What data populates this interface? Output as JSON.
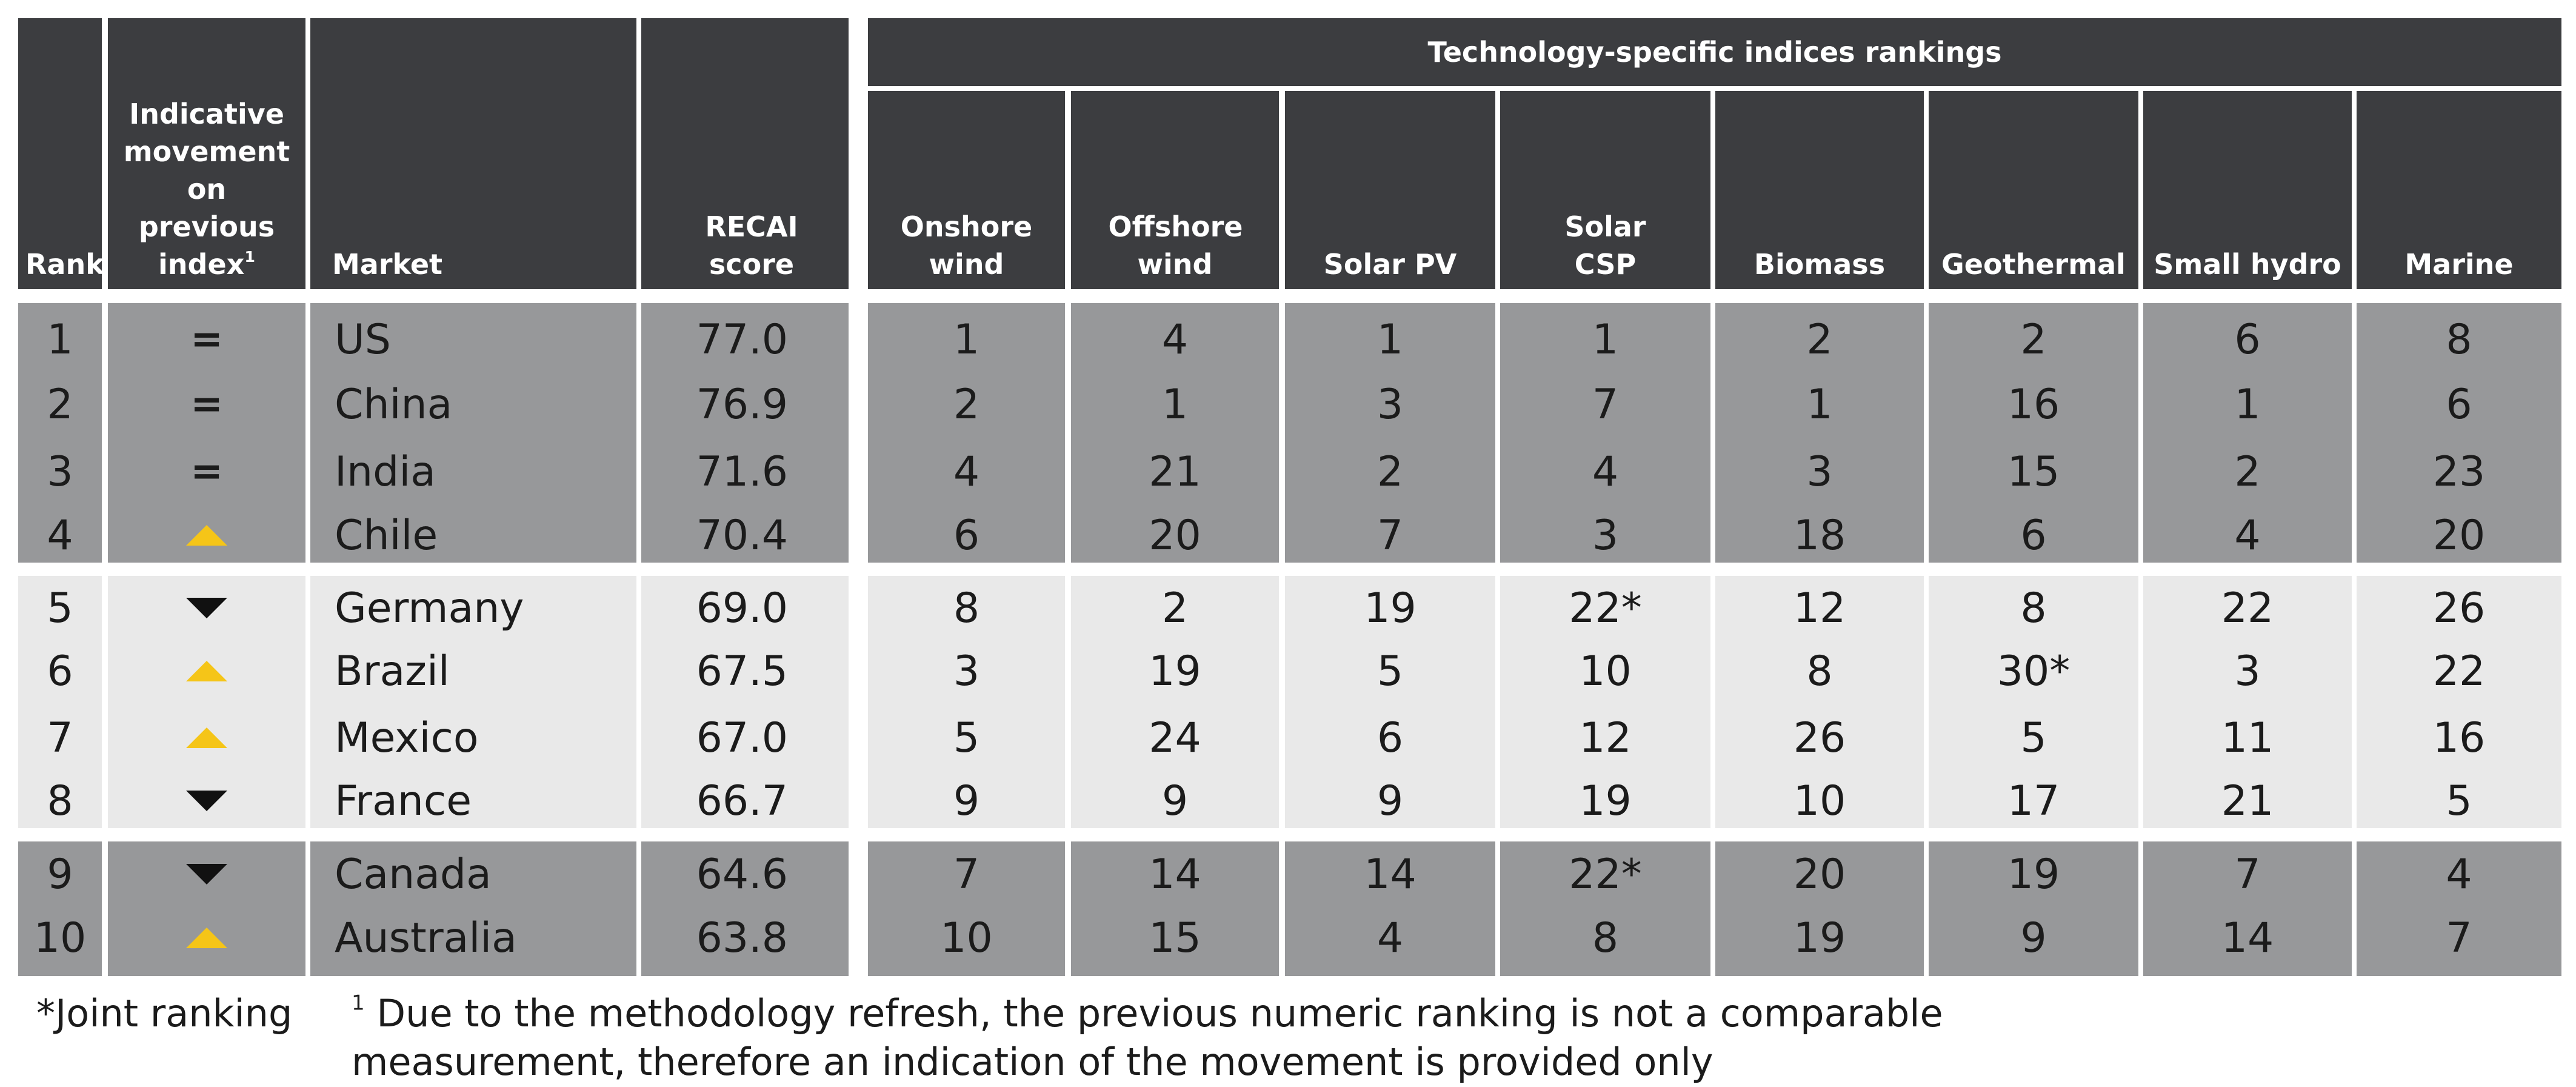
{
  "colors": {
    "header": "#3c3d40",
    "group_dark": "#97989a",
    "group_light": "#e9e9e9",
    "up": "#f5c518",
    "down": "#111111"
  },
  "header": {
    "rank": "Rank",
    "movement": "Indicative movement on previous index",
    "movement_sup": "1",
    "market": "Market",
    "recai": "RECAI score",
    "tech_group": "Technology-specific indices rankings",
    "tech": [
      "Onshore wind",
      "Offshore wind",
      "Solar PV",
      "Solar CSP",
      "Biomass",
      "Geothermal",
      "Small hydro",
      "Marine"
    ]
  },
  "rows": [
    {
      "rank": "1",
      "movement": "=",
      "market": "US",
      "score": "77.0",
      "tech": [
        "1",
        "4",
        "1",
        "1",
        "2",
        "2",
        "6",
        "8"
      ]
    },
    {
      "rank": "2",
      "movement": "=",
      "market": "China",
      "score": "76.9",
      "tech": [
        "2",
        "1",
        "3",
        "7",
        "1",
        "16",
        "1",
        "6"
      ]
    },
    {
      "rank": "3",
      "movement": "=",
      "market": "India",
      "score": "71.6",
      "tech": [
        "4",
        "21",
        "2",
        "4",
        "3",
        "15",
        "2",
        "23"
      ]
    },
    {
      "rank": "4",
      "movement": "up",
      "market": "Chile",
      "score": "70.4",
      "tech": [
        "6",
        "20",
        "7",
        "3",
        "18",
        "6",
        "4",
        "20"
      ]
    },
    {
      "rank": "5",
      "movement": "down",
      "market": "Germany",
      "score": "69.0",
      "tech": [
        "8",
        "2",
        "19",
        "22*",
        "12",
        "8",
        "22",
        "26"
      ]
    },
    {
      "rank": "6",
      "movement": "up",
      "market": "Brazil",
      "score": "67.5",
      "tech": [
        "3",
        "19",
        "5",
        "10",
        "8",
        "30*",
        "3",
        "22"
      ]
    },
    {
      "rank": "7",
      "movement": "up",
      "market": "Mexico",
      "score": "67.0",
      "tech": [
        "5",
        "24",
        "6",
        "12",
        "26",
        "5",
        "11",
        "16"
      ]
    },
    {
      "rank": "8",
      "movement": "down",
      "market": "France",
      "score": "66.7",
      "tech": [
        "9",
        "9",
        "9",
        "19",
        "10",
        "17",
        "21",
        "5"
      ]
    },
    {
      "rank": "9",
      "movement": "down",
      "market": "Canada",
      "score": "64.6",
      "tech": [
        "7",
        "14",
        "14",
        "22*",
        "20",
        "19",
        "7",
        "4"
      ]
    },
    {
      "rank": "10",
      "movement": "up",
      "market": "Australia",
      "score": "63.8",
      "tech": [
        "10",
        "15",
        "4",
        "8",
        "19",
        "9",
        "14",
        "7"
      ]
    }
  ],
  "footnotes": {
    "joint": "*Joint ranking",
    "note_sup": "1",
    "note_line1": "Due to the methodology refresh, the previous numeric ranking is not a comparable",
    "note_line2": "measurement, therefore an indication of the movement is provided only"
  }
}
